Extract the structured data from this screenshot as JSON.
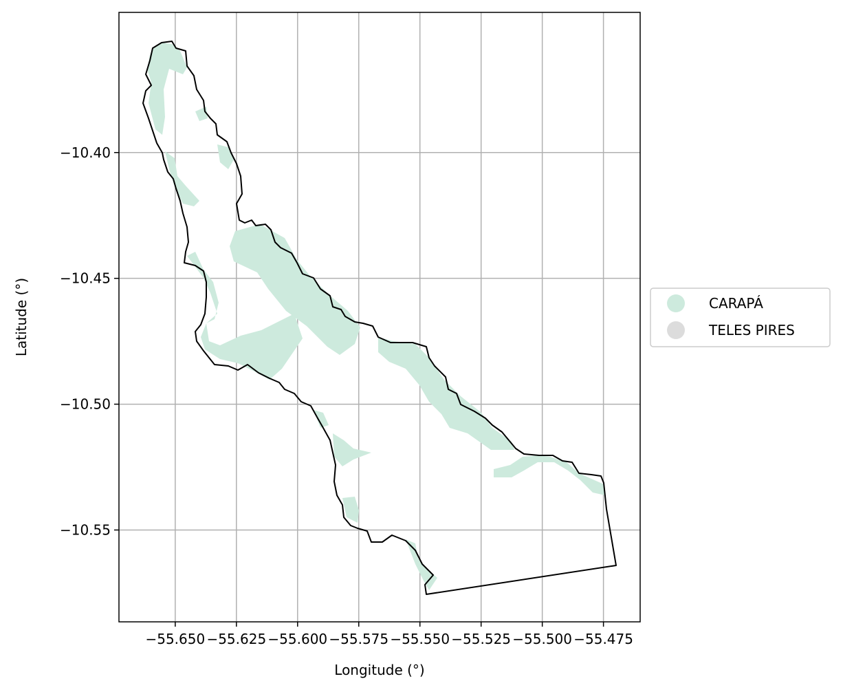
{
  "chart_data": {
    "type": "map",
    "title": "",
    "xlabel": "Longitude (°)",
    "ylabel": "Latitude (°)",
    "xlim": [
      -55.673,
      -55.46
    ],
    "ylim": [
      -10.5865,
      -10.3443
    ],
    "x_ticks": [
      -55.65,
      -55.625,
      -55.6,
      -55.575,
      -55.55,
      -55.525,
      -55.5,
      -55.475
    ],
    "x_tick_labels": [
      "−55.650",
      "−55.625",
      "−55.600",
      "−55.575",
      "−55.550",
      "−55.525",
      "−55.500",
      "−55.475"
    ],
    "y_ticks": [
      -10.4,
      -10.45,
      -10.5,
      -10.55
    ],
    "y_tick_labels": [
      "−10.40",
      "−10.45",
      "−10.50",
      "−10.55"
    ],
    "grid": true,
    "legend": {
      "placement": "right-outside",
      "entries": [
        {
          "label": "CARAPÁ",
          "color": "#cdeadd"
        },
        {
          "label": "TELES PIRES",
          "color": "#dcdcdc"
        }
      ]
    },
    "colors": {
      "boundary": "#000000",
      "grid": "#b0b0b0",
      "carapa_fill": "#cdeadd"
    }
  }
}
